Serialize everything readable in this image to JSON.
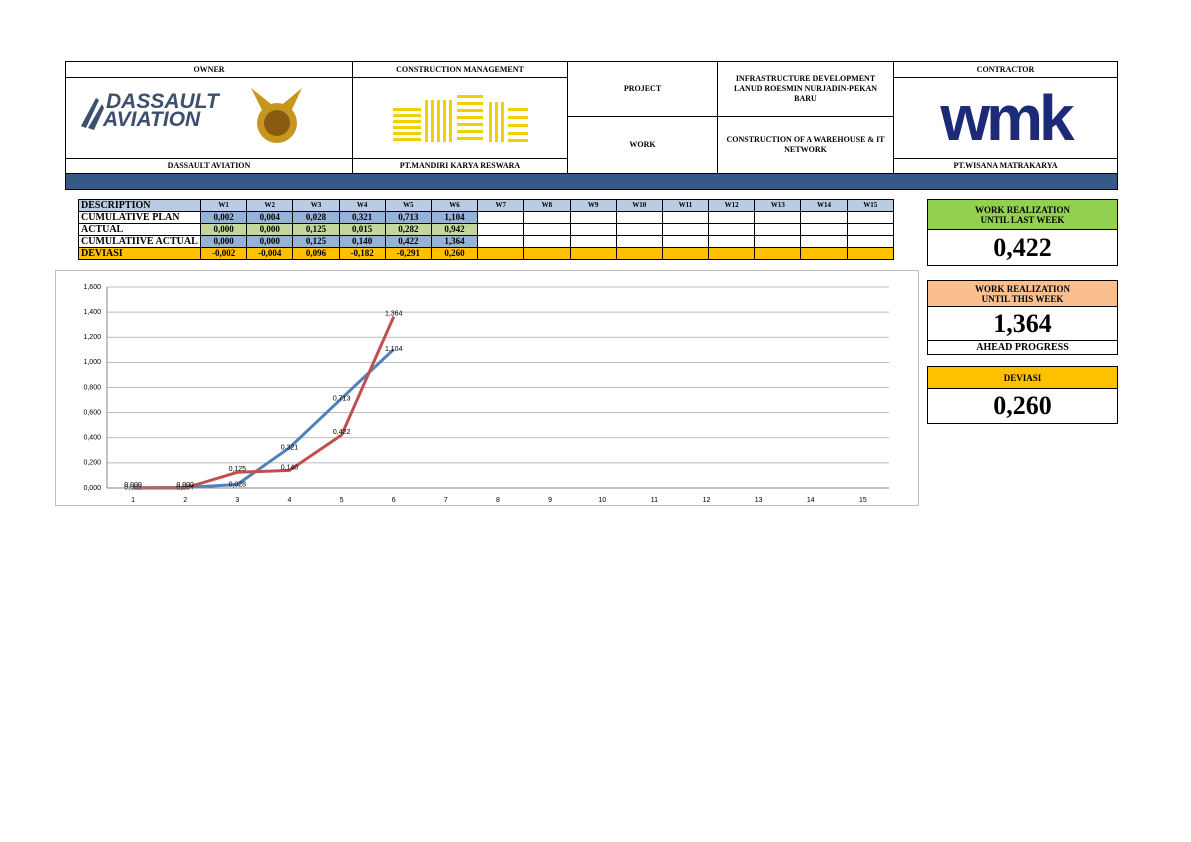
{
  "header": {
    "owner_label": "OWNER",
    "cm_label": "CONSTRUCTION MANAGEMENT",
    "project_label": "PROJECT",
    "project": "INFRASTRUCTURE DEVELOPMENT LANUD ROESMIN NURJADIN-PEKAN BARU",
    "work_label": "WORK",
    "work": "CONSTRUCTION OF A WAREHOUSE & IT NETWORK",
    "contractor_label": "CONTRACTOR",
    "owner": "DASSAULT AVIATION",
    "cm": "PT.MANDIRI KARYA RESWARA",
    "contractor": "PT.WISANA MATRAKARYA",
    "owner_logo": [
      "DASSAULT",
      "AVIATION"
    ],
    "contractor_logo": "wmk"
  },
  "table": {
    "columns": [
      "DESCRIPTION",
      "W1",
      "W2",
      "W3",
      "W4",
      "W5",
      "W6",
      "W7",
      "W8",
      "W9",
      "W10",
      "W11",
      "W12",
      "W13",
      "W14",
      "W15"
    ],
    "rows": [
      [
        "CUMULATIVE PLAN",
        "0,002",
        "0,004",
        "0,028",
        "0,321",
        "0,713",
        "1,104"
      ],
      [
        "ACTUAL",
        "0,000",
        "0,000",
        "0,125",
        "0,015",
        "0,282",
        "0,942"
      ],
      [
        "CUMULATIIVE ACTUAL",
        "0,000",
        "0,000",
        "0,125",
        "0,140",
        "0,422",
        "1,364"
      ],
      [
        "DEVIASI",
        "-0,002",
        "-0,004",
        "0,096",
        "-0,182",
        "-0,291",
        "0,260"
      ]
    ]
  },
  "summary": [
    {
      "title": [
        "WORK REALIZATION",
        "UNTIL LAST WEEK"
      ],
      "value": "0,422"
    },
    {
      "title": [
        "WORK REALIZATION",
        "UNTIL THIS WEEK"
      ],
      "value": "1,364",
      "note": "AHEAD PROGRESS"
    },
    {
      "title": [
        "DEVIASI"
      ],
      "value": "0,260"
    }
  ],
  "chart_data": {
    "type": "line",
    "categories": [
      1,
      2,
      3,
      4,
      5,
      6,
      7,
      8,
      9,
      10,
      11,
      12,
      13,
      14,
      15
    ],
    "series": [
      {
        "color": "#4f81bd",
        "values": [
          0.002,
          0.004,
          0.028,
          0.321,
          0.713,
          1.104,
          null,
          null,
          null,
          null,
          null,
          null,
          null,
          null,
          null
        ],
        "value_labels": [
          "0,002",
          "0,004",
          "0,028",
          "0,321",
          "0,713",
          "1,104",
          null,
          null,
          null,
          null,
          null,
          null,
          null,
          null,
          null
        ]
      },
      {
        "color": "#c0504d",
        "values": [
          0.0,
          0.0,
          0.125,
          0.14,
          0.422,
          1.364,
          null,
          null,
          null,
          null,
          null,
          null,
          null,
          null,
          null
        ],
        "value_labels": [
          "0,000",
          "0,000",
          "0,125",
          "0,140",
          "0,422",
          "1,364",
          null,
          null,
          null,
          null,
          null,
          null,
          null,
          null,
          null
        ]
      }
    ],
    "ylim": [
      0,
      1.6
    ],
    "yticks": [
      {
        "value": 0,
        "label": "0,000"
      },
      {
        "value": 0.2,
        "label": "0,200"
      },
      {
        "value": 0.4,
        "label": "0,400"
      },
      {
        "value": 0.6,
        "label": "0,600"
      },
      {
        "value": 0.8,
        "label": "0,800"
      },
      {
        "value": 1.0,
        "label": "1,000"
      },
      {
        "value": 1.2,
        "label": "1,200"
      },
      {
        "value": 1.4,
        "label": "1,400"
      },
      {
        "value": 1.6,
        "label": "1,600"
      }
    ],
    "grid": true
  }
}
